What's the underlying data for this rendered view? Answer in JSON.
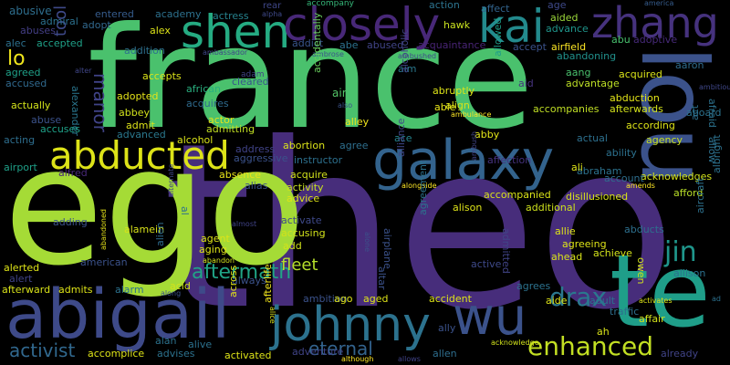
{
  "words": [
    {
      "t": "theo",
      "c": "#472d7b"
    },
    {
      "t": "ego",
      "c": "#a5db36"
    },
    {
      "t": "france",
      "c": "#4ac16d"
    },
    {
      "t": "lou",
      "c": "#3b528b"
    },
    {
      "t": "te",
      "c": "#1f9e89"
    },
    {
      "t": "abigail",
      "c": "#3e4a89"
    },
    {
      "t": "johnny",
      "c": "#2c728e"
    },
    {
      "t": "wu",
      "c": "#3b528b"
    },
    {
      "t": "galaxy",
      "c": "#33638d"
    },
    {
      "t": "shen",
      "c": "#25ab82"
    },
    {
      "t": "closely",
      "c": "#482878"
    },
    {
      "t": "kai",
      "c": "#238a8d"
    },
    {
      "t": "zhang",
      "c": "#46327e"
    },
    {
      "t": "abducted",
      "c": "#dde318"
    },
    {
      "t": "enhanced",
      "c": "#c2df23"
    },
    {
      "t": "drax",
      "c": "#2a788e"
    },
    {
      "t": "jin",
      "c": "#1f968b"
    },
    {
      "t": "aftermath",
      "c": "#20a486"
    },
    {
      "t": "fleet",
      "c": "#b5de2b"
    },
    {
      "t": "eternal",
      "c": "#33638d"
    },
    {
      "t": "activist",
      "c": "#31688e"
    },
    {
      "t": "manor",
      "c": "#404387"
    },
    {
      "t": "tool",
      "c": "#3e4989"
    },
    {
      "t": "lo",
      "c": "#efe51c"
    },
    {
      "t": "abusive",
      "c": "#2e6e8e"
    },
    {
      "t": "entered",
      "c": "#365c8d"
    },
    {
      "t": "academy",
      "c": "#2d718e"
    },
    {
      "t": "actress",
      "c": "#26828e"
    },
    {
      "t": "alpha",
      "c": "#3e4989"
    },
    {
      "t": "rear",
      "c": "#3f4788"
    },
    {
      "t": "action",
      "c": "#2c738e"
    },
    {
      "t": "age",
      "c": "#3e4989"
    },
    {
      "t": "america",
      "c": "#365c8d"
    },
    {
      "t": "admiral",
      "c": "#2c718e"
    },
    {
      "t": "adopt",
      "c": "#31688e"
    },
    {
      "t": "accompany",
      "c": "#35b779"
    },
    {
      "t": "affect",
      "c": "#32648e"
    },
    {
      "t": "aided",
      "c": "#9dd93b"
    },
    {
      "t": "abuses",
      "c": "#433e85"
    },
    {
      "t": "alec",
      "c": "#2d718e"
    },
    {
      "t": "accepted",
      "c": "#1fa188"
    },
    {
      "t": "alex",
      "c": "#dde318"
    },
    {
      "t": "addict",
      "c": "#39558c"
    },
    {
      "t": "abe",
      "c": "#2c728e"
    },
    {
      "t": "abused",
      "c": "#414487"
    },
    {
      "t": "hawk",
      "c": "#c8e020"
    },
    {
      "t": "acquaintance",
      "c": "#482475"
    },
    {
      "t": "advance",
      "c": "#1f958b"
    },
    {
      "t": "abu",
      "c": "#48c16e"
    },
    {
      "t": "adoptive",
      "c": "#472a7a"
    },
    {
      "t": "accept",
      "c": "#3b528b"
    },
    {
      "t": "airfield",
      "c": "#fde725"
    },
    {
      "t": "addition",
      "c": "#2d708e"
    },
    {
      "t": "ambassador",
      "c": "#3f4788"
    },
    {
      "t": "ambrose",
      "c": "#3b528b"
    },
    {
      "t": "ambushed",
      "c": "#3e4989"
    },
    {
      "t": "abandoning",
      "c": "#21918c"
    },
    {
      "t": "agreed",
      "c": "#1fa188"
    },
    {
      "t": "alter",
      "c": "#404688"
    },
    {
      "t": "accepts",
      "c": "#dae319"
    },
    {
      "t": "adam",
      "c": "#414487"
    },
    {
      "t": "aim",
      "c": "#2a788e"
    },
    {
      "t": "allowed",
      "c": "#1f9e89"
    },
    {
      "t": "aid",
      "c": "#46337f"
    },
    {
      "t": "aang",
      "c": "#4ac16d"
    },
    {
      "t": "acquired",
      "c": "#d8e219"
    },
    {
      "t": "aaron",
      "c": "#2f6c8e"
    },
    {
      "t": "ambitious",
      "c": "#3f4788"
    },
    {
      "t": "accused",
      "c": "#30698e"
    },
    {
      "t": "african",
      "c": "#29af7f"
    },
    {
      "t": "cleared",
      "c": "#39558c"
    },
    {
      "t": "advantage",
      "c": "#bddf26"
    },
    {
      "t": "abruptly",
      "c": "#dde318"
    },
    {
      "t": "alcoholic",
      "c": "#414487"
    },
    {
      "t": "accidentally",
      "c": "#67cc5c"
    },
    {
      "t": "air",
      "c": "#54c568"
    },
    {
      "t": "abduction",
      "c": "#e2e418"
    },
    {
      "t": "adopted",
      "c": "#e5e419"
    },
    {
      "t": "actually",
      "c": "#d2e21b"
    },
    {
      "t": "alexander",
      "c": "#2a768e"
    },
    {
      "t": "abbey",
      "c": "#d0e11c"
    },
    {
      "t": "acquires",
      "c": "#2f6b8e"
    },
    {
      "t": "also",
      "c": "#3b528b"
    },
    {
      "t": "align",
      "c": "#d8e219"
    },
    {
      "t": "able",
      "c": "#e7e419"
    },
    {
      "t": "ambulance",
      "c": "#fde725"
    },
    {
      "t": "accompanies",
      "c": "#c0df25"
    },
    {
      "t": "afterwards",
      "c": "#d2e21b"
    },
    {
      "t": "aboard",
      "c": "#2c728e"
    },
    {
      "t": "abuse",
      "c": "#3b528b"
    },
    {
      "t": "admit",
      "c": "#dde318"
    },
    {
      "t": "actor",
      "c": "#e5e419"
    },
    {
      "t": "alley",
      "c": "#f1e51d"
    },
    {
      "t": "according",
      "c": "#dde318"
    },
    {
      "t": "afraid",
      "c": "#2c728e"
    },
    {
      "t": "acting",
      "c": "#2e6e8e"
    },
    {
      "t": "accuses",
      "c": "#1fa188"
    },
    {
      "t": "advanced",
      "c": "#2a788e"
    },
    {
      "t": "admitting",
      "c": "#c2df23"
    },
    {
      "t": "ace",
      "c": "#25858e"
    },
    {
      "t": "abby",
      "c": "#e2e418"
    },
    {
      "t": "actual",
      "c": "#2d708e"
    },
    {
      "t": "agency",
      "c": "#c8e020"
    },
    {
      "t": "act",
      "c": "#2d708e"
    },
    {
      "t": "airport",
      "c": "#1fa088"
    },
    {
      "t": "alfred",
      "c": "#482878"
    },
    {
      "t": "alcohol",
      "c": "#d8e219"
    },
    {
      "t": "address",
      "c": "#404387"
    },
    {
      "t": "abortion",
      "c": "#dae319"
    },
    {
      "t": "agree",
      "c": "#2e6f8e"
    },
    {
      "t": "ability",
      "c": "#2c718e"
    },
    {
      "t": "allow",
      "c": "#2d708e"
    },
    {
      "t": "aggressive",
      "c": "#3b528b"
    },
    {
      "t": "instructor",
      "c": "#2d708e"
    },
    {
      "t": "alliance",
      "c": "#3f4788"
    },
    {
      "t": "affection",
      "c": "#46327e"
    },
    {
      "t": "abraham",
      "c": "#2c728e"
    },
    {
      "t": "acknowledges",
      "c": "#d2e21b"
    },
    {
      "t": "ali",
      "c": "#dde318"
    },
    {
      "t": "account",
      "c": "#2e6e8e"
    },
    {
      "t": "afford",
      "c": "#b8de29"
    },
    {
      "t": "absence",
      "c": "#e7e419"
    },
    {
      "t": "acquire",
      "c": "#d2e21b"
    },
    {
      "t": "alongside",
      "c": "#fde725"
    },
    {
      "t": "ambush",
      "c": "#414487"
    },
    {
      "t": "albright",
      "c": "#2c718e"
    },
    {
      "t": "alias",
      "c": "#3b528b"
    },
    {
      "t": "activity",
      "c": "#c8e020"
    },
    {
      "t": "accompanied",
      "c": "#dae319"
    },
    {
      "t": "alison",
      "c": "#dde318"
    },
    {
      "t": "additional",
      "c": "#cde11d"
    },
    {
      "t": "disillusioned",
      "c": "#d8e219"
    },
    {
      "t": "amends",
      "c": "#fde725"
    },
    {
      "t": "aircraft",
      "c": "#2d718e"
    },
    {
      "t": "advice",
      "c": "#dde318"
    },
    {
      "t": "adding",
      "c": "#3b528b"
    },
    {
      "t": "alamein",
      "c": "#d8e219"
    },
    {
      "t": "alternate",
      "c": "#404688"
    },
    {
      "t": "al",
      "c": "#2d708e"
    },
    {
      "t": "activate",
      "c": "#3e4989"
    },
    {
      "t": "abducts",
      "c": "#2d708e"
    },
    {
      "t": "agent",
      "c": "#dde318"
    },
    {
      "t": "alien",
      "c": "#2f6b8e"
    },
    {
      "t": "aging",
      "c": "#dde318"
    },
    {
      "t": "almost",
      "c": "#404387"
    },
    {
      "t": "accusing",
      "c": "#d2e21b"
    },
    {
      "t": "add",
      "c": "#d2e21b"
    },
    {
      "t": "alone",
      "c": "#3b528b"
    },
    {
      "t": "airplane",
      "c": "#3b528b"
    },
    {
      "t": "agreement",
      "c": "#2c728e"
    },
    {
      "t": "admitted",
      "c": "#414487"
    },
    {
      "t": "allie",
      "c": "#dde318"
    },
    {
      "t": "agreeing",
      "c": "#dde318"
    },
    {
      "t": "achieve",
      "c": "#d2e21b"
    },
    {
      "t": "ahead",
      "c": "#d8e219"
    },
    {
      "t": "owen",
      "c": "#d0e11c"
    },
    {
      "t": "allison",
      "c": "#2c718e"
    },
    {
      "t": "alerted",
      "c": "#dde318"
    },
    {
      "t": "abandon",
      "c": "#d2e21b"
    },
    {
      "t": "american",
      "c": "#3b528b"
    },
    {
      "t": "alert",
      "c": "#404387"
    },
    {
      "t": "abandoned",
      "c": "#e7e419"
    },
    {
      "t": "altar",
      "c": "#3b528b"
    },
    {
      "t": "active",
      "c": "#3e4989"
    },
    {
      "t": "activates",
      "c": "#dde318"
    },
    {
      "t": "always",
      "c": "#3b528b"
    },
    {
      "t": "afterward",
      "c": "#d8e219"
    },
    {
      "t": "admits",
      "c": "#dde318"
    },
    {
      "t": "alarm",
      "c": "#2c728e"
    },
    {
      "t": "acid",
      "c": "#d2e21b"
    },
    {
      "t": "across",
      "c": "#e2e418"
    },
    {
      "t": "agrees",
      "c": "#2c728e"
    },
    {
      "t": "aide",
      "c": "#dde318"
    },
    {
      "t": "adult",
      "c": "#2c728e"
    },
    {
      "t": "traffic",
      "c": "#2e6e8e"
    },
    {
      "t": "affair",
      "c": "#d2e21b"
    },
    {
      "t": "ad",
      "c": "#2c718e"
    },
    {
      "t": "along",
      "c": "#3b528b"
    },
    {
      "t": "ambition",
      "c": "#3b528b"
    },
    {
      "t": "ago",
      "c": "#dde318"
    },
    {
      "t": "aged",
      "c": "#dde318"
    },
    {
      "t": "accident",
      "c": "#dde318"
    },
    {
      "t": "afterlife",
      "c": "#f1e51d"
    },
    {
      "t": "alice",
      "c": "#d8e219"
    },
    {
      "t": "ally",
      "c": "#3b528b"
    },
    {
      "t": "ah",
      "c": "#d8e219"
    },
    {
      "t": "alan",
      "c": "#2c728e"
    },
    {
      "t": "alive",
      "c": "#2c718e"
    },
    {
      "t": "accomplice",
      "c": "#dde318"
    },
    {
      "t": "advises",
      "c": "#2c728e"
    },
    {
      "t": "activated",
      "c": "#dde318"
    },
    {
      "t": "adventure",
      "c": "#404387"
    },
    {
      "t": "allen",
      "c": "#2e6e8e"
    },
    {
      "t": "acknowledge",
      "c": "#d0e11c"
    },
    {
      "t": "although",
      "c": "#fde725"
    },
    {
      "t": "allows",
      "c": "#404387"
    },
    {
      "t": "already",
      "c": "#404387"
    },
    {
      "t": "accepting",
      "c": "#2c718e"
    }
  ]
}
